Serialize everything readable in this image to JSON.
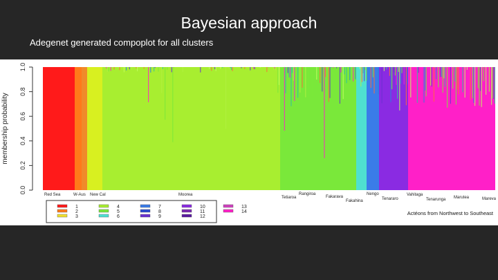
{
  "slide": {
    "title": "Bayesian approach",
    "subtitle": "Adegenet generated compoplot for all clusters",
    "figure": {
      "ylabel": "membership probability",
      "yticks": [
        "0.0",
        "0.2",
        "0.4",
        "0.6",
        "0.8",
        "1.0"
      ],
      "populations": [
        "Red Sea",
        "W-Aus",
        "New Cal",
        "Moorea",
        "Tetiaroa",
        "Rangiroa",
        "Fakarava",
        "Fakahina",
        "Nengo",
        "Tenararo",
        "Vahitaga",
        "Tenarunga",
        "Marutea",
        "Mareva"
      ],
      "legend": [
        "1",
        "2",
        "3",
        "4",
        "5",
        "6",
        "7",
        "8",
        "9",
        "10",
        "11",
        "12",
        "13",
        "14"
      ],
      "caption": "Actéons from Northwest to Southeast"
    }
  }
}
